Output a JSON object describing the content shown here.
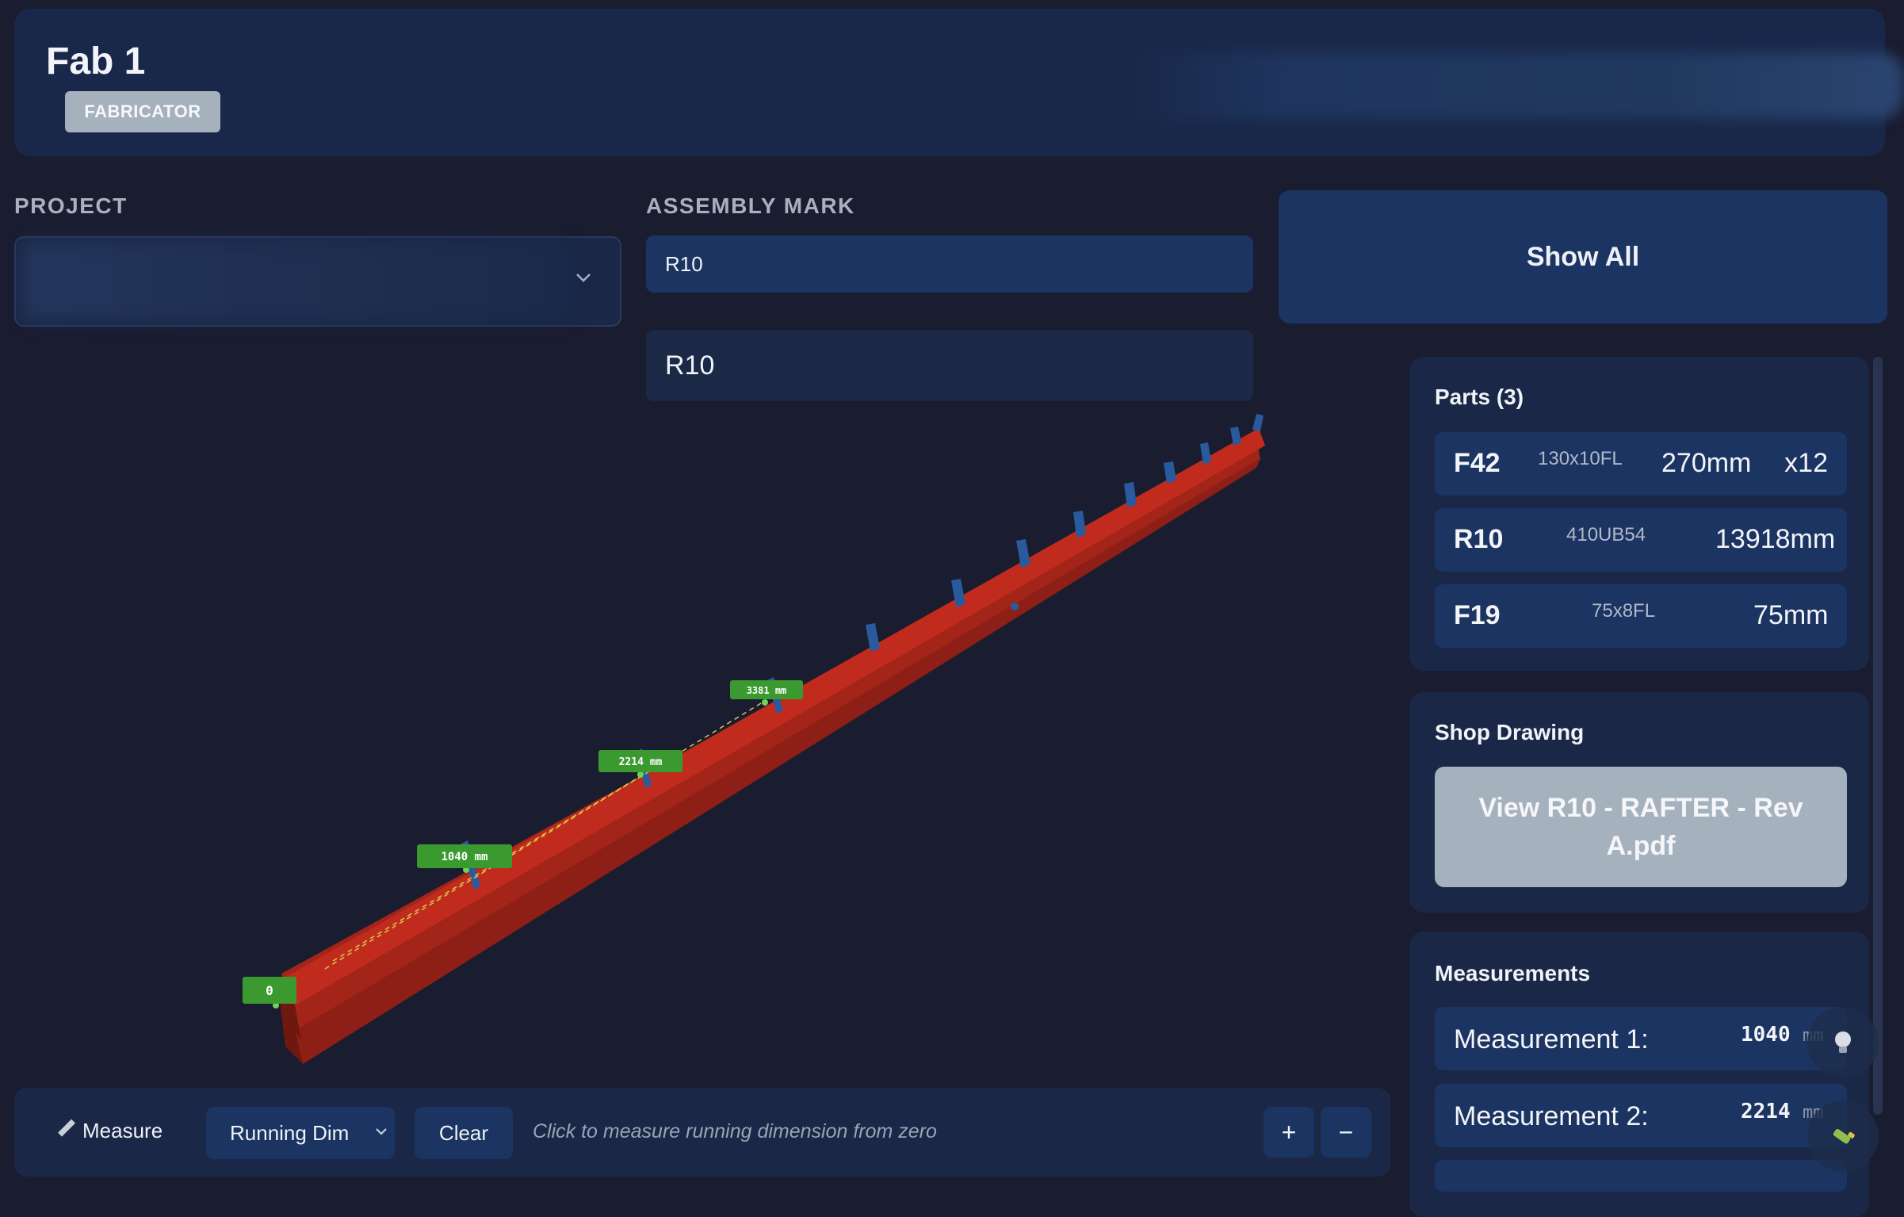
{
  "header": {
    "title": "Fab 1",
    "role_badge": "FABRICATOR"
  },
  "project": {
    "label": "PROJECT"
  },
  "assembly": {
    "label": "ASSEMBLY MARK",
    "value": "R10",
    "suggestion": "R10"
  },
  "show_all_label": "Show All",
  "parts": {
    "title": "Parts (3)",
    "items": [
      {
        "mark": "F42",
        "profile": "130x10FL",
        "length": "270mm",
        "qty": "x12"
      },
      {
        "mark": "R10",
        "profile": "410UB54",
        "length": "13918mm",
        "qty": ""
      },
      {
        "mark": "F19",
        "profile": "75x8FL",
        "length": "75mm",
        "qty": ""
      }
    ]
  },
  "shop_drawing": {
    "title": "Shop Drawing",
    "button_label": "View R10 - RAFTER - Rev A.pdf"
  },
  "measurements": {
    "title": "Measurements",
    "items": [
      {
        "label": "Measurement 1:",
        "value": "1040",
        "unit": "mm"
      },
      {
        "label": "Measurement 2:",
        "value": "2214",
        "unit": "mm"
      }
    ]
  },
  "viewport": {
    "dim_labels": [
      "0",
      "1040 mm",
      "2214 mm",
      "3381 mm"
    ],
    "beam_color": "#b3271b",
    "stiffener_color": "#2a5a9e",
    "label_color": "#3a9a30"
  },
  "toolbar": {
    "measure_label": "Measure",
    "mode_value": "Running Dim",
    "clear_label": "Clear",
    "hint": "Click to measure running dimension from zero",
    "zoom_in": "+",
    "zoom_out": "−"
  },
  "icons": {
    "measure": "ruler-icon",
    "bulb": "lightbulb-icon",
    "brush": "brush-icon",
    "chevron": "chevron-down-icon"
  }
}
